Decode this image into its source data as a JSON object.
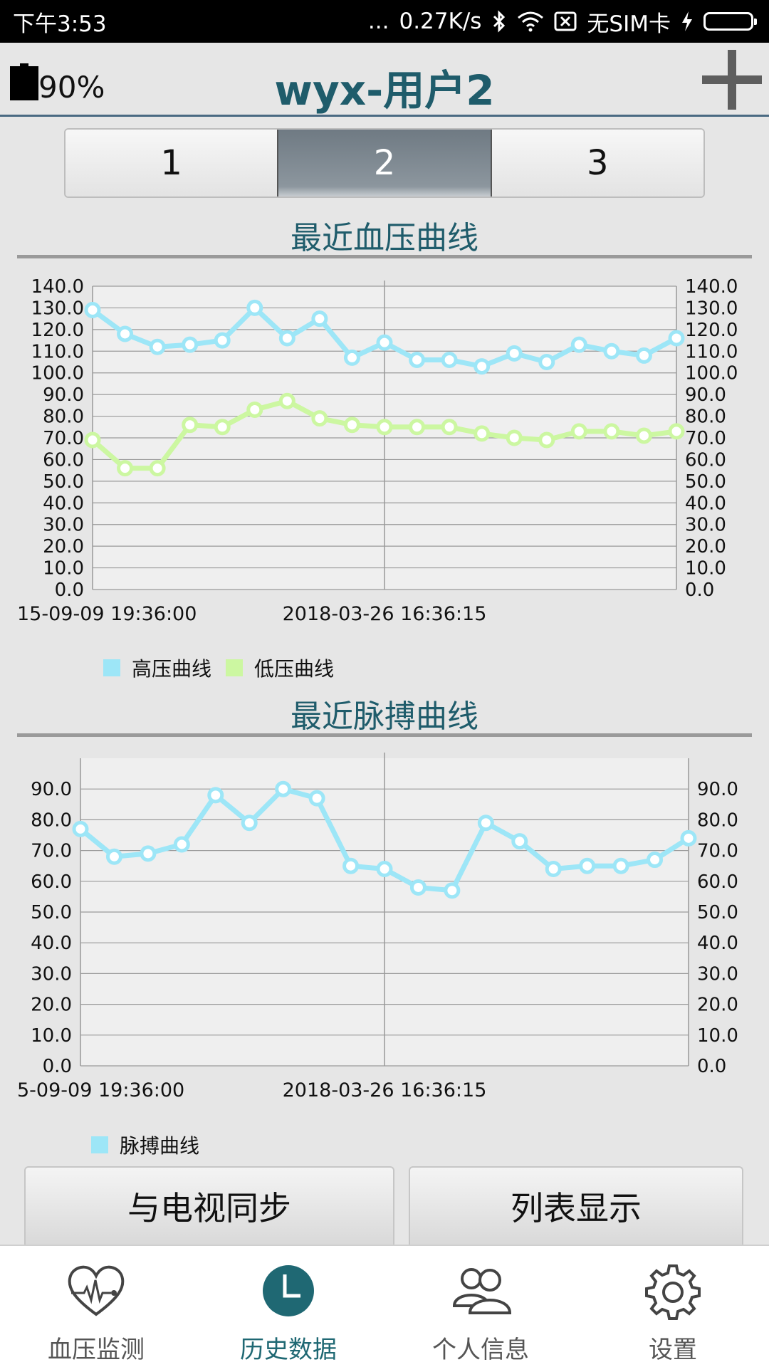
{
  "status_bar": {
    "time": "下午3:53",
    "dots": "...",
    "net_speed": "0.27K/s",
    "sim": "无SIM卡"
  },
  "header": {
    "battery_percent": "90%",
    "title": "wyx-用户2"
  },
  "segments": {
    "items": [
      "1",
      "2",
      "3"
    ],
    "active_index": 1
  },
  "bp_section": {
    "title": "最近血压曲线"
  },
  "pulse_section": {
    "title": "最近脉搏曲线"
  },
  "colors": {
    "high": "#9de6f7",
    "low": "#ccf7a1",
    "pulse": "#9de6f7",
    "accent": "#1f5c6b",
    "plot_bg": "#efefef"
  },
  "chart_data": [
    {
      "type": "line",
      "ylim": [
        0,
        140
      ],
      "y_ticks": [
        "0.0",
        "10.0",
        "20.0",
        "30.0",
        "40.0",
        "50.0",
        "60.0",
        "70.0",
        "80.0",
        "90.0",
        "100.0",
        "110.0",
        "120.0",
        "130.0",
        "140.0"
      ],
      "x_labels": [
        "15-09-09 19:36:00",
        "2018-03-26 16:36:15"
      ],
      "grid": true,
      "legend_position": "bottom-left",
      "series": [
        {
          "name": "高压曲线",
          "values": [
            129,
            118,
            112,
            113,
            115,
            130,
            116,
            125,
            107,
            114,
            106,
            106,
            103,
            109,
            105,
            113,
            110,
            108,
            116
          ]
        },
        {
          "name": "低压曲线",
          "values": [
            69,
            56,
            56,
            76,
            75,
            83,
            87,
            79,
            76,
            75,
            75,
            75,
            72,
            70,
            69,
            73,
            73,
            71,
            73
          ]
        }
      ]
    },
    {
      "type": "line",
      "ylim": [
        0,
        100
      ],
      "y_ticks": [
        "0.0",
        "10.0",
        "20.0",
        "30.0",
        "40.0",
        "50.0",
        "60.0",
        "70.0",
        "80.0",
        "90.0"
      ],
      "x_labels": [
        "5-09-09 19:36:00",
        "2018-03-26 16:36:15"
      ],
      "grid": true,
      "legend_position": "bottom-left",
      "series": [
        {
          "name": "脉搏曲线",
          "values": [
            77,
            68,
            69,
            72,
            88,
            79,
            90,
            87,
            65,
            64,
            58,
            57,
            79,
            73,
            64,
            65,
            65,
            67,
            74
          ]
        }
      ]
    }
  ],
  "actions": {
    "sync_tv": "与电视同步",
    "list_view": "列表显示"
  },
  "bottom_nav": {
    "items": [
      {
        "label": "血压监测",
        "icon": "heart-pulse-icon"
      },
      {
        "label": "历史数据",
        "icon": "clock-icon"
      },
      {
        "label": "个人信息",
        "icon": "users-icon"
      },
      {
        "label": "设置",
        "icon": "gear-icon"
      }
    ],
    "active_index": 1
  }
}
